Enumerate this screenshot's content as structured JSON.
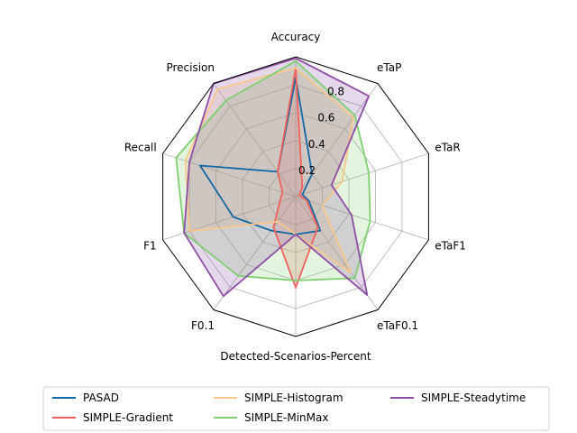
{
  "chart_data": {
    "type": "radar",
    "axes": [
      "Accuracy",
      "eTaP",
      "eTaR",
      "eTaF1",
      "eTaF0.1",
      "Detected-Scenarios-Percent",
      "F0.1",
      "F1",
      "Recall",
      "Precision"
    ],
    "rlim": [
      0,
      1
    ],
    "rticks": [
      0.2,
      0.4,
      0.6,
      0.8
    ],
    "rtick_labels": [
      "0.2",
      "0.4",
      "0.6",
      "0.8"
    ],
    "grid": true,
    "legend_position": "bottom",
    "series": [
      {
        "name": "PASAD",
        "color": "#1167a1",
        "fill": false,
        "values": [
          0.85,
          0.2,
          0.05,
          0.1,
          0.3,
          0.27,
          0.3,
          0.47,
          0.72,
          0.22
        ]
      },
      {
        "name": "SIMPLE-Gradient",
        "color": "#f0605c",
        "fill": true,
        "values": [
          0.92,
          0.08,
          0.03,
          0.08,
          0.27,
          0.65,
          0.27,
          0.12,
          0.1,
          0.22
        ]
      },
      {
        "name": "SIMPLE-Histogram",
        "color": "#f8c88a",
        "fill": true,
        "values": [
          0.92,
          0.7,
          0.35,
          0.2,
          0.67,
          0.27,
          0.22,
          0.8,
          0.83,
          0.95
        ]
      },
      {
        "name": "SIMPLE-MinMax",
        "color": "#7ecf6e",
        "fill": true,
        "values": [
          0.97,
          0.72,
          0.55,
          0.56,
          0.72,
          0.6,
          0.7,
          0.84,
          0.9,
          0.85
        ]
      },
      {
        "name": "SIMPLE-Steadytime",
        "color": "#8f4ea5",
        "fill": true,
        "values": [
          0.99,
          0.89,
          0.27,
          0.42,
          0.87,
          0.27,
          0.88,
          0.84,
          0.8,
          1.0
        ]
      }
    ]
  }
}
